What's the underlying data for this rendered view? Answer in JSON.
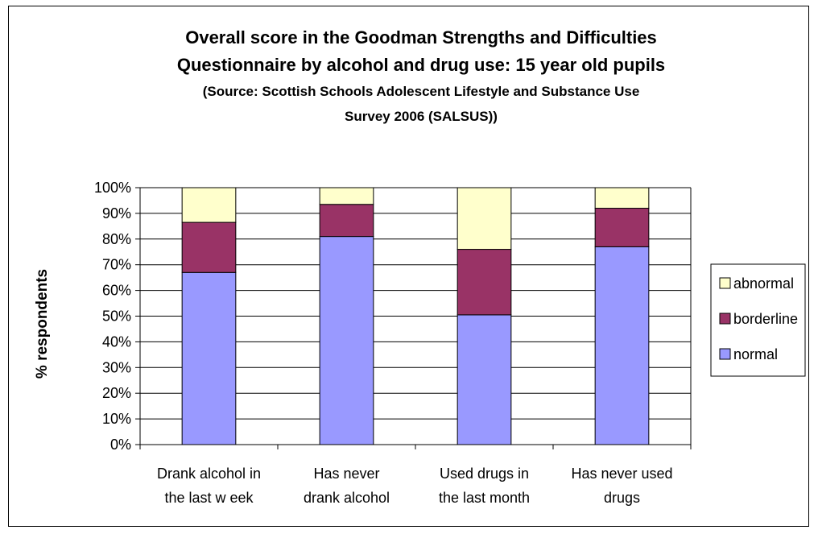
{
  "chart_data": {
    "type": "bar",
    "stacked": true,
    "title_lines": [
      "Overall score in the Goodman Strengths and Difficulties",
      "Questionnaire by alcohol and drug use: 15 year old pupils"
    ],
    "subtitle_lines": [
      "(Source: Scottish Schools Adolescent Lifestyle and Substance Use",
      "Survey 2006 (SALSUS))"
    ],
    "xlabel": "",
    "ylabel": "% respondents",
    "ylim": [
      0,
      100
    ],
    "yticks": [
      "0%",
      "10%",
      "20%",
      "30%",
      "40%",
      "50%",
      "60%",
      "70%",
      "80%",
      "90%",
      "100%"
    ],
    "categories": [
      [
        "Drank alcohol in",
        "the last w eek"
      ],
      [
        "Has never",
        "drank alcohol"
      ],
      [
        "Used drugs in",
        "the last month"
      ],
      [
        "Has never used",
        "drugs"
      ]
    ],
    "series": [
      {
        "name": "normal",
        "color": "#9999ff",
        "values": [
          67,
          81,
          50.5,
          77
        ]
      },
      {
        "name": "borderline",
        "color": "#993366",
        "values": [
          19.5,
          12.5,
          25.5,
          15
        ]
      },
      {
        "name": "abnormal",
        "color": "#ffffcc",
        "values": [
          13.5,
          6.5,
          24,
          8
        ]
      }
    ],
    "legend_order": [
      "abnormal",
      "borderline",
      "normal"
    ],
    "legend_position": "right",
    "grid": true
  }
}
